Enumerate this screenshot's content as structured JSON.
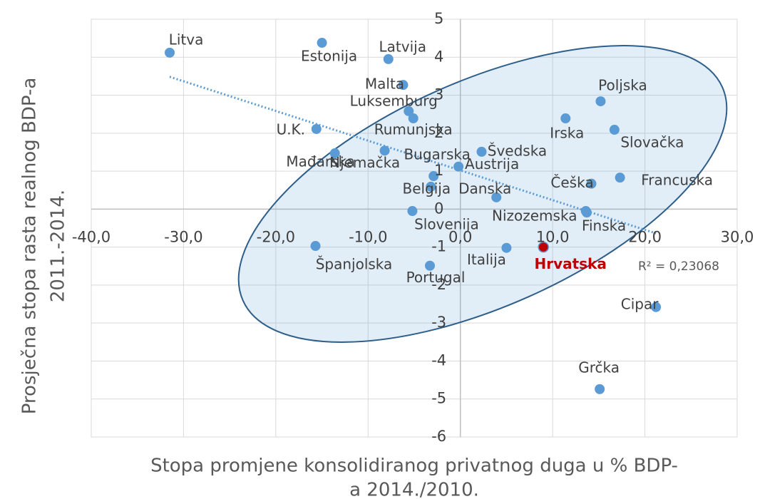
{
  "chart_data": {
    "type": "scatter",
    "x_label": [
      "Stopa promjene konsolidiranog privatnog duga u % BDP-",
      "a 2014./2010."
    ],
    "y_label": [
      "Prosječna stopa rasta realnog BDP-a",
      "2011.-2014."
    ],
    "r2_label": "R² = 0,23068",
    "color": "#5b9bd5",
    "trendline": {
      "color": "#5b9bd5",
      "style": "dotted"
    },
    "xlim": [
      -40,
      30
    ],
    "ylim": [
      -6,
      5
    ],
    "xticks": [
      {
        "value": -40,
        "label": "-40,0"
      },
      {
        "value": -30,
        "label": "-30,0"
      },
      {
        "value": -20,
        "label": "-20,0"
      },
      {
        "value": -10,
        "label": "-10,0"
      },
      {
        "value": 0,
        "label": "0,0"
      },
      {
        "value": 10,
        "label": "10,0"
      },
      {
        "value": 20,
        "label": "20,0"
      },
      {
        "value": 30,
        "label": "30,0"
      }
    ],
    "yticks": [
      -6,
      -5,
      -4,
      -3,
      -2,
      -1,
      0,
      1,
      2,
      3,
      4,
      5
    ],
    "grid": true,
    "points": [
      {
        "label": "Litva",
        "x": -31.5,
        "y": 4.12
      },
      {
        "label": "Estonija",
        "x": -15.0,
        "y": 4.38
      },
      {
        "label": "Latvija",
        "x": -7.8,
        "y": 3.95
      },
      {
        "label": "Malta",
        "x": -6.2,
        "y": 3.27
      },
      {
        "label": "Luksemburg",
        "x": -5.6,
        "y": 2.58
      },
      {
        "label": "Rumunjska",
        "x": -5.1,
        "y": 2.39
      },
      {
        "label": "U.K.",
        "x": -15.6,
        "y": 2.11
      },
      {
        "label": "Mađarska",
        "x": -13.6,
        "y": 1.47
      },
      {
        "label": "Njemačka",
        "x": -8.2,
        "y": 1.54
      },
      {
        "label": "Bugarska",
        "x": -2.9,
        "y": 0.87
      },
      {
        "label": "Belgija",
        "x": -3.2,
        "y": 0.59
      },
      {
        "label": "Austrija",
        "x": -0.2,
        "y": 1.12
      },
      {
        "label": "Švedska",
        "x": 2.3,
        "y": 1.51
      },
      {
        "label": "Danska",
        "x": 3.9,
        "y": 0.31
      },
      {
        "label": "Slovenija",
        "x": -5.2,
        "y": -0.05
      },
      {
        "label": "Irska",
        "x": 11.4,
        "y": 2.39
      },
      {
        "label": "Poljska",
        "x": 15.2,
        "y": 2.84
      },
      {
        "label": "Slovačka",
        "x": 16.7,
        "y": 2.09
      },
      {
        "label": "Francuska",
        "x": 17.3,
        "y": 0.83
      },
      {
        "label": "Češka",
        "x": 14.2,
        "y": 0.67
      },
      {
        "label": "Nizozemska",
        "x": 13.6,
        "y": -0.05
      },
      {
        "label": "Finska",
        "x": 13.7,
        "y": -0.09
      },
      {
        "label": "Italija",
        "x": 5.0,
        "y": -1.02
      },
      {
        "label": "Hrvatska",
        "x": 9.0,
        "y": -1.0,
        "color": "#c00000"
      },
      {
        "label": "Španjolska",
        "x": -15.7,
        "y": -0.97
      },
      {
        "label": "Portugal",
        "x": -3.3,
        "y": -1.49
      },
      {
        "label": "Cipar",
        "x": 21.2,
        "y": -2.58
      },
      {
        "label": "Grčka",
        "x": 15.1,
        "y": -4.74
      }
    ]
  }
}
